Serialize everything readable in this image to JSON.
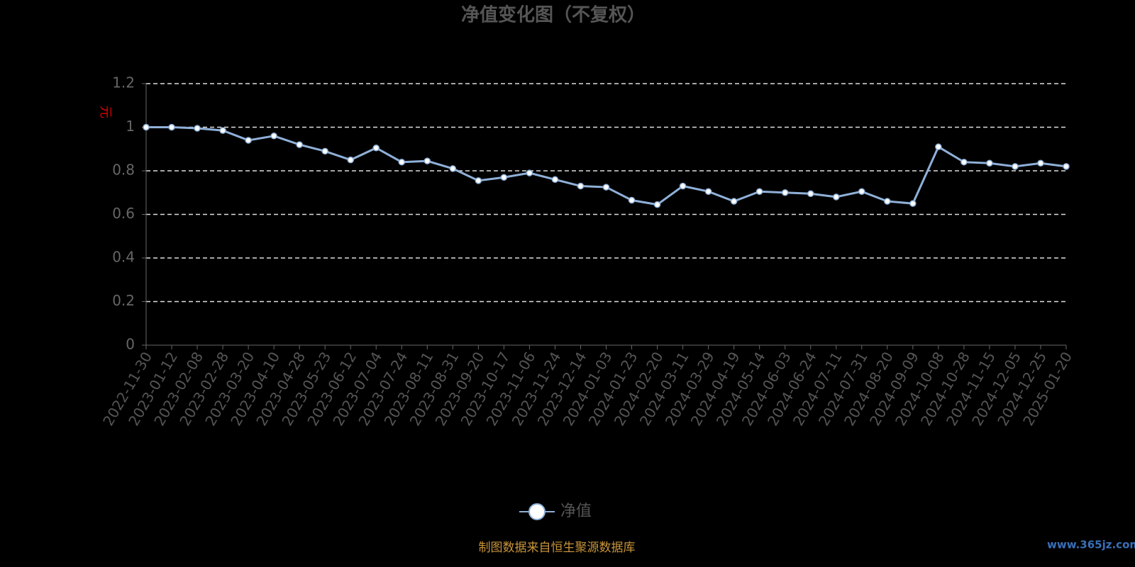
{
  "chart_data": {
    "type": "line",
    "title": "净值变化图（不复权）",
    "y_label": "元",
    "categories": [
      "2022-11-30",
      "2023-01-12",
      "2023-02-08",
      "2023-02-28",
      "2023-03-20",
      "2023-04-10",
      "2023-04-28",
      "2023-05-23",
      "2023-06-12",
      "2023-07-04",
      "2023-07-24",
      "2023-08-11",
      "2023-08-31",
      "2023-09-20",
      "2023-10-17",
      "2023-11-06",
      "2023-11-24",
      "2023-12-14",
      "2024-01-03",
      "2024-01-23",
      "2024-02-20",
      "2024-03-11",
      "2024-03-29",
      "2024-04-19",
      "2024-05-14",
      "2024-06-03",
      "2024-06-24",
      "2024-07-11",
      "2024-07-31",
      "2024-08-20",
      "2024-09-09",
      "2024-10-08",
      "2024-10-28",
      "2024-11-15",
      "2024-12-05",
      "2024-12-25",
      "2025-01-20"
    ],
    "series": [
      {
        "name": "净值",
        "color": "#8fb0d8",
        "values": [
          1.0,
          1.0,
          0.995,
          0.985,
          0.94,
          0.96,
          0.92,
          0.89,
          0.85,
          0.905,
          0.84,
          0.845,
          0.81,
          0.755,
          0.77,
          0.79,
          0.76,
          0.73,
          0.725,
          0.665,
          0.645,
          0.73,
          0.705,
          0.66,
          0.705,
          0.7,
          0.695,
          0.68,
          0.705,
          0.66,
          0.65,
          0.91,
          0.84,
          0.835,
          0.82,
          0.835,
          0.82
        ]
      }
    ],
    "ylim": [
      0,
      1.2
    ],
    "yticks": [
      0,
      0.2,
      0.4,
      0.6,
      0.8,
      1,
      1.2
    ],
    "grid": true,
    "legend": "bottom",
    "source": "制图数据来自恒生聚源数据库",
    "watermark": "www.365jz.com"
  }
}
